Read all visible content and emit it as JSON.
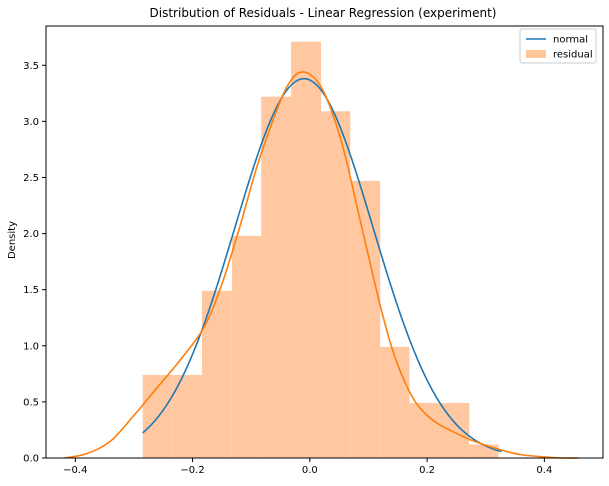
{
  "chart_data": {
    "type": "histogram",
    "title": "Distribution of Residuals - Linear Regression (experiment)",
    "xlabel": "",
    "ylabel": "Density",
    "xlim": [
      -0.45,
      0.5
    ],
    "ylim": [
      0,
      3.85
    ],
    "xticks": [
      -0.4,
      -0.2,
      0.0,
      0.2,
      0.4
    ],
    "xtick_labels": [
      "−0.4",
      "−0.2",
      "0.0",
      "0.2",
      "0.4"
    ],
    "yticks": [
      0.0,
      0.5,
      1.0,
      1.5,
      2.0,
      2.5,
      3.0,
      3.5
    ],
    "ytick_labels": [
      "0.0",
      "0.5",
      "1.0",
      "1.5",
      "2.0",
      "2.5",
      "3.0",
      "3.5"
    ],
    "grid": false,
    "legend_position": "top-right",
    "legend": [
      {
        "label": "normal",
        "color": "#1f77b4",
        "kind": "line"
      },
      {
        "label": "residual",
        "color": "#ffc79a",
        "kind": "patch"
      }
    ],
    "histogram": {
      "name": "residual",
      "color": "#ffc8a0",
      "bins": [
        {
          "x0": -0.285,
          "x1": -0.234,
          "density": 0.74
        },
        {
          "x0": -0.234,
          "x1": -0.184,
          "density": 0.74
        },
        {
          "x0": -0.184,
          "x1": -0.133,
          "density": 1.49
        },
        {
          "x0": -0.133,
          "x1": -0.083,
          "density": 1.98
        },
        {
          "x0": -0.083,
          "x1": -0.032,
          "density": 3.22
        },
        {
          "x0": -0.032,
          "x1": 0.019,
          "density": 3.71
        },
        {
          "x0": 0.019,
          "x1": 0.069,
          "density": 3.09
        },
        {
          "x0": 0.069,
          "x1": 0.12,
          "density": 2.47
        },
        {
          "x0": 0.12,
          "x1": 0.17,
          "density": 0.99
        },
        {
          "x0": 0.17,
          "x1": 0.221,
          "density": 0.49
        },
        {
          "x0": 0.221,
          "x1": 0.272,
          "density": 0.49
        },
        {
          "x0": 0.272,
          "x1": 0.322,
          "density": 0.12
        }
      ]
    },
    "series": [
      {
        "name": "normal",
        "color": "#1f77b4",
        "kind": "normal_pdf",
        "mu": -0.01,
        "sigma": 0.118,
        "x_range": [
          -0.285,
          0.327
        ]
      },
      {
        "name": "residual",
        "color": "#ff7f0e",
        "kind": "kde",
        "x": [
          -0.418,
          -0.38,
          -0.34,
          -0.3,
          -0.26,
          -0.22,
          -0.18,
          -0.15,
          -0.12,
          -0.09,
          -0.06,
          -0.04,
          -0.02,
          0.0,
          0.02,
          0.04,
          0.06,
          0.08,
          0.1,
          0.12,
          0.14,
          0.16,
          0.18,
          0.2,
          0.22,
          0.25,
          0.28,
          0.32,
          0.36,
          0.4,
          0.43,
          0.458
        ],
        "y": [
          0.0,
          0.04,
          0.15,
          0.38,
          0.63,
          0.88,
          1.17,
          1.55,
          2.05,
          2.6,
          3.05,
          3.3,
          3.43,
          3.42,
          3.3,
          3.05,
          2.7,
          2.25,
          1.8,
          1.36,
          0.98,
          0.7,
          0.5,
          0.38,
          0.3,
          0.22,
          0.15,
          0.08,
          0.03,
          0.01,
          0.0,
          0.0
        ]
      }
    ]
  }
}
